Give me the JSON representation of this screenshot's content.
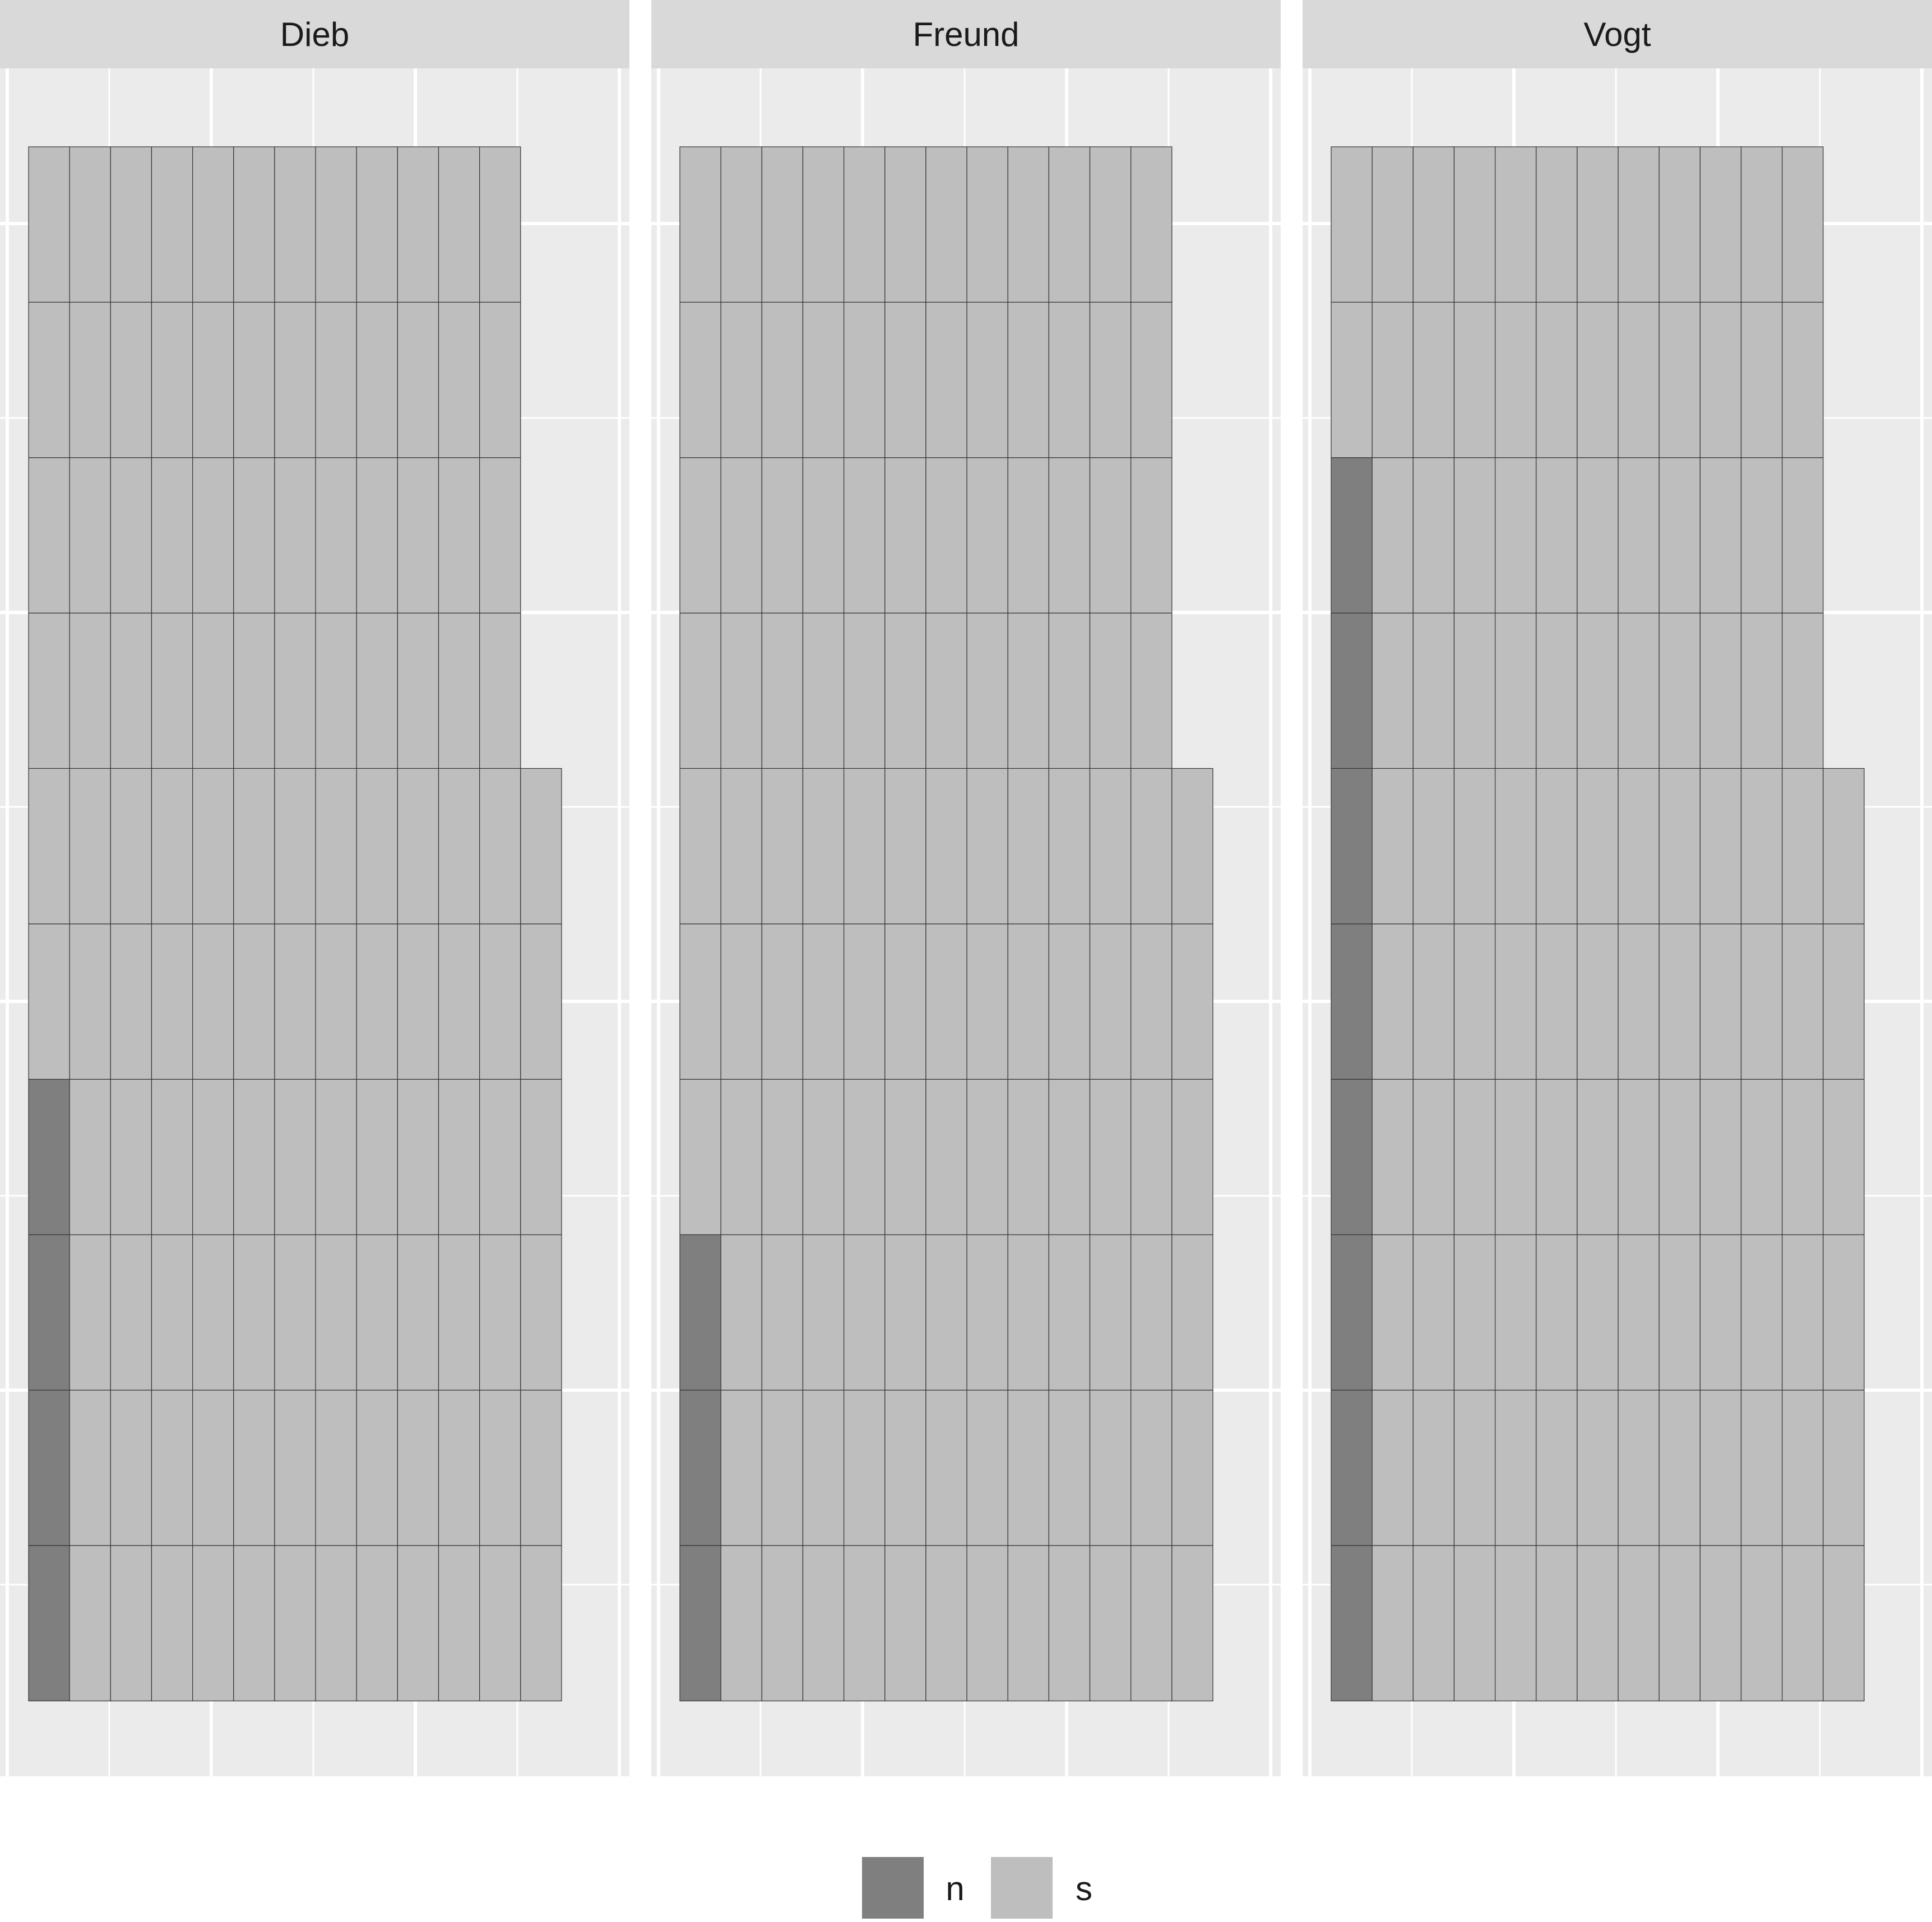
{
  "chart_data": {
    "type": "waffle",
    "facets": [
      {
        "label": "Dieb",
        "counts": {
          "n": 4,
          "s": 122
        }
      },
      {
        "label": "Freund",
        "counts": {
          "n": 3,
          "s": 123
        }
      },
      {
        "label": "Vogt",
        "counts": {
          "n": 8,
          "s": 118
        }
      }
    ],
    "grid": {
      "rows": 10,
      "columns": 13
    },
    "legend": {
      "position": "bottom",
      "items": [
        {
          "key": "n",
          "label": "n",
          "color": "#7f7f7f"
        },
        {
          "key": "s",
          "label": "s",
          "color": "#bebebe"
        }
      ]
    },
    "colors": {
      "panel_background": "#ebebeb",
      "strip_background": "#d9d9d9",
      "grid_line": "#ffffff",
      "tile_border": "#333333"
    },
    "title": "",
    "xlabel": "",
    "ylabel": ""
  }
}
